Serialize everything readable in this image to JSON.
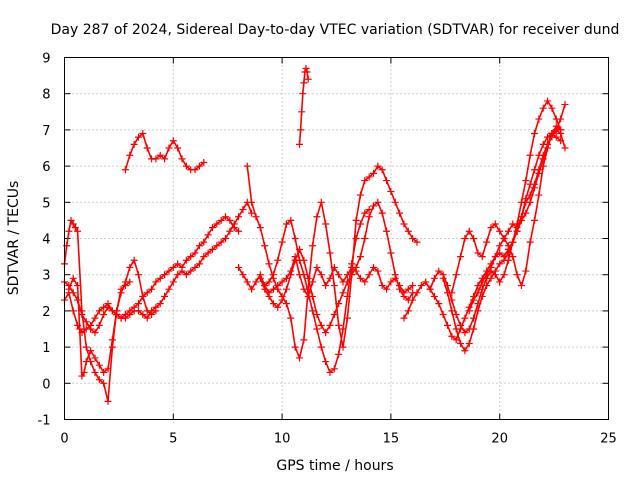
{
  "chart_data": {
    "type": "scatter",
    "title": "Day 287 of 2024, Sidereal Day-to-day VTEC variation (SDTVAR) for receiver dund",
    "xlabel": "GPS time / hours",
    "ylabel": "SDTVAR / TECUs",
    "xlim": [
      0,
      25
    ],
    "ylim": [
      -1,
      9
    ],
    "xticks": [
      0,
      5,
      10,
      15,
      20,
      25
    ],
    "yticks": [
      -1,
      0,
      1,
      2,
      3,
      4,
      5,
      6,
      7,
      8,
      9
    ],
    "grid": true,
    "legend": "none",
    "marker": "plus",
    "color": "#ff0000",
    "series": [
      {
        "name": "trace-1",
        "x": [
          0.0,
          0.2,
          0.4,
          0.6,
          0.8,
          1.0,
          1.2,
          1.4,
          1.6,
          1.8,
          2.0,
          2.2,
          2.4,
          2.6,
          2.8,
          3.0,
          3.2,
          3.4,
          3.6,
          3.8,
          4.0,
          4.2,
          4.4,
          4.6,
          4.8,
          5.0,
          5.2,
          5.4,
          5.6,
          5.8,
          6.0,
          6.2,
          6.4,
          6.6,
          6.8,
          7.0,
          7.2,
          7.4,
          7.6,
          7.8,
          8.0
        ],
        "y": [
          2.3,
          2.5,
          2.0,
          1.6,
          1.4,
          1.5,
          1.6,
          1.8,
          2.0,
          2.1,
          2.2,
          2.0,
          1.9,
          1.8,
          1.9,
          2.0,
          2.1,
          2.2,
          2.4,
          2.5,
          2.6,
          2.8,
          2.9,
          3.0,
          3.1,
          3.2,
          3.3,
          3.2,
          3.4,
          3.5,
          3.6,
          3.8,
          3.9,
          4.1,
          4.3,
          4.4,
          4.5,
          4.6,
          4.5,
          4.3,
          4.2
        ]
      },
      {
        "name": "trace-2",
        "x": [
          0.0,
          0.2,
          0.4,
          0.6,
          0.8,
          1.0,
          1.2,
          1.4,
          1.6,
          1.8,
          2.0,
          2.2,
          2.4,
          2.6,
          2.8,
          3.0,
          3.2,
          3.4,
          3.6,
          3.8,
          4.0,
          4.2,
          4.4,
          4.6,
          4.8,
          5.0,
          5.2,
          5.4,
          5.6,
          5.8,
          6.0,
          6.2,
          6.4,
          6.6,
          6.8,
          7.0,
          7.2,
          7.4,
          7.6,
          7.8,
          8.0,
          8.2,
          8.4,
          8.6
        ],
        "y": [
          2.8,
          2.7,
          2.5,
          2.3,
          1.9,
          1.7,
          1.5,
          1.4,
          1.6,
          1.9,
          2.1,
          2.0,
          1.9,
          1.8,
          1.8,
          1.9,
          2.0,
          2.0,
          1.9,
          1.8,
          2.0,
          2.1,
          2.2,
          2.4,
          2.6,
          2.8,
          3.0,
          3.1,
          3.0,
          3.1,
          3.2,
          3.3,
          3.5,
          3.6,
          3.7,
          3.8,
          3.9,
          4.0,
          4.2,
          4.4,
          4.6,
          4.8,
          5.0,
          4.7
        ]
      },
      {
        "name": "trace-3",
        "x": [
          0.0,
          0.1,
          0.2,
          0.3,
          0.4,
          0.5,
          0.6,
          0.8,
          1.0,
          1.2,
          1.4,
          1.6,
          1.8,
          2.0,
          2.2,
          2.4,
          2.6,
          2.8,
          3.0,
          3.2,
          3.4,
          3.6,
          3.8,
          4.0,
          4.2
        ],
        "y": [
          3.3,
          3.8,
          4.2,
          4.5,
          4.4,
          4.3,
          4.2,
          2.0,
          1.0,
          0.6,
          0.3,
          0.1,
          0.0,
          -0.5,
          1.0,
          2.0,
          2.5,
          2.8,
          3.2,
          3.4,
          3.0,
          2.4,
          2.0,
          1.9,
          2.0
        ]
      },
      {
        "name": "trace-4",
        "x": [
          0.2,
          0.4,
          0.6,
          0.7,
          0.8,
          0.9,
          1.0,
          1.2,
          1.4,
          1.6,
          1.8,
          2.0,
          2.2,
          2.4,
          2.6,
          2.8,
          3.0
        ],
        "y": [
          2.6,
          2.9,
          2.7,
          1.5,
          0.2,
          0.3,
          0.6,
          0.9,
          0.7,
          0.5,
          0.3,
          0.4,
          1.2,
          2.0,
          2.6,
          2.7,
          2.8
        ]
      },
      {
        "name": "trace-5",
        "x": [
          2.8,
          3.0,
          3.2,
          3.4,
          3.6,
          3.8,
          4.0,
          4.2,
          4.4,
          4.6,
          4.8,
          5.0,
          5.2,
          5.4,
          5.6,
          5.8,
          6.0,
          6.2,
          6.4
        ],
        "y": [
          5.9,
          6.3,
          6.6,
          6.8,
          6.9,
          6.5,
          6.2,
          6.2,
          6.3,
          6.2,
          6.5,
          6.7,
          6.5,
          6.2,
          6.0,
          5.9,
          5.9,
          6.0,
          6.1
        ]
      },
      {
        "name": "trace-6",
        "x": [
          8.0,
          8.2,
          8.4,
          8.6,
          8.8,
          9.0,
          9.2,
          9.4,
          9.6,
          9.8,
          10.0,
          10.2,
          10.4,
          10.6,
          10.8,
          11.0,
          11.2,
          11.4,
          11.6,
          11.8,
          12.0,
          12.2,
          12.4,
          12.6,
          12.8,
          13.0,
          13.2,
          13.4,
          13.6,
          13.8,
          14.0,
          14.2,
          14.4,
          14.6,
          14.8,
          15.0,
          15.2,
          15.4,
          15.6,
          15.8,
          16.0
        ],
        "y": [
          3.2,
          3.0,
          2.8,
          2.6,
          2.8,
          3.0,
          2.7,
          2.5,
          2.6,
          2.7,
          2.8,
          2.9,
          3.1,
          3.5,
          3.0,
          2.6,
          2.4,
          2.8,
          3.2,
          3.0,
          2.7,
          2.9,
          3.2,
          3.0,
          2.8,
          3.0,
          3.2,
          3.1,
          2.9,
          2.8,
          3.0,
          3.2,
          3.1,
          2.7,
          2.6,
          2.8,
          2.9,
          2.7,
          2.5,
          2.6,
          2.7
        ]
      },
      {
        "name": "trace-7",
        "x": [
          8.4,
          8.6,
          8.8,
          9.0,
          9.2,
          9.4,
          9.6,
          9.8,
          10.0,
          10.2,
          10.4,
          10.6,
          10.8,
          11.0,
          11.2,
          11.4,
          11.6,
          11.8,
          12.0,
          12.2,
          12.4,
          12.6,
          12.8,
          13.0,
          13.2,
          13.4,
          13.6,
          13.8,
          14.0,
          14.2,
          14.4,
          14.6,
          14.8,
          15.0,
          15.2,
          15.4,
          15.6,
          15.8,
          16.0,
          16.2
        ],
        "y": [
          6.0,
          5.0,
          4.6,
          4.3,
          3.8,
          3.3,
          2.9,
          2.6,
          2.4,
          2.2,
          1.8,
          1.0,
          0.7,
          1.2,
          2.6,
          3.8,
          4.6,
          5.0,
          4.4,
          3.6,
          2.7,
          1.6,
          1.0,
          1.8,
          3.0,
          4.5,
          5.2,
          5.6,
          5.7,
          5.8,
          6.0,
          5.9,
          5.6,
          5.3,
          5.0,
          4.7,
          4.4,
          4.2,
          4.0,
          3.9
        ]
      },
      {
        "name": "trace-8",
        "x": [
          9.0,
          9.2,
          9.4,
          9.6,
          9.8,
          10.0,
          10.2,
          10.4,
          10.6,
          10.8,
          11.0,
          11.2,
          11.4,
          11.6,
          11.8,
          12.0,
          12.2,
          12.4,
          12.6,
          12.8,
          13.0,
          13.2,
          13.4,
          13.6,
          13.8,
          14.0,
          14.2,
          14.4,
          14.6,
          14.8,
          15.0,
          15.2,
          15.4,
          15.6,
          15.8,
          16.0
        ],
        "y": [
          2.9,
          2.6,
          2.4,
          2.2,
          2.1,
          2.3,
          2.6,
          3.0,
          3.4,
          3.7,
          3.4,
          2.9,
          2.4,
          1.9,
          1.6,
          1.4,
          1.6,
          1.9,
          2.2,
          2.5,
          2.8,
          3.0,
          3.2,
          3.5,
          4.0,
          4.6,
          4.9,
          5.0,
          4.7,
          4.2,
          3.6,
          3.0,
          2.6,
          2.4,
          2.3,
          2.5
        ]
      },
      {
        "name": "trace-9",
        "x": [
          9.2,
          9.4,
          9.6,
          9.8,
          10.0,
          10.2,
          10.4,
          10.6,
          10.8,
          11.0,
          11.2,
          11.4,
          11.6,
          11.8,
          12.0,
          12.2,
          12.4,
          12.6,
          12.8,
          13.0,
          13.2,
          13.4,
          13.6,
          13.8,
          14.0
        ],
        "y": [
          2.7,
          2.8,
          3.0,
          3.4,
          3.9,
          4.4,
          4.5,
          4.0,
          3.4,
          3.0,
          2.5,
          2.0,
          1.5,
          1.0,
          0.6,
          0.3,
          0.4,
          0.8,
          1.5,
          2.4,
          3.3,
          4.0,
          4.4,
          4.7,
          4.8
        ]
      },
      {
        "name": "trace-10",
        "x": [
          10.8,
          10.85,
          10.9,
          10.95,
          11.0,
          11.05,
          11.1,
          11.15,
          11.2
        ],
        "y": [
          6.6,
          7.0,
          7.5,
          8.0,
          8.3,
          8.6,
          8.7,
          8.6,
          8.4
        ]
      },
      {
        "name": "trace-11",
        "x": [
          15.6,
          15.8,
          16.0,
          16.2,
          16.4,
          16.6,
          16.8,
          17.0,
          17.2,
          17.4,
          17.6,
          17.8,
          18.0,
          18.2,
          18.4,
          18.6,
          18.8,
          19.0,
          19.2,
          19.4,
          19.6,
          19.8,
          20.0,
          20.2,
          20.4,
          20.6,
          20.8,
          21.0,
          21.2,
          21.4,
          21.6,
          21.8,
          22.0,
          22.2,
          22.4,
          22.6,
          22.8
        ],
        "y": [
          1.8,
          2.0,
          2.3,
          2.5,
          2.7,
          2.8,
          2.6,
          2.4,
          2.2,
          1.9,
          1.6,
          1.3,
          1.2,
          1.5,
          1.8,
          2.1,
          2.4,
          2.7,
          2.9,
          3.1,
          3.3,
          3.5,
          3.6,
          3.5,
          3.7,
          3.9,
          4.2,
          4.6,
          5.1,
          5.5,
          5.9,
          6.3,
          6.6,
          6.8,
          6.9,
          6.8,
          6.7
        ]
      },
      {
        "name": "trace-12",
        "x": [
          16.8,
          17.0,
          17.2,
          17.4,
          17.6,
          17.8,
          18.0,
          18.2,
          18.4,
          18.6,
          18.8,
          19.0,
          19.2,
          19.4,
          19.6,
          19.8,
          20.0,
          20.2,
          20.4,
          20.6,
          20.8,
          21.0,
          21.2,
          21.4,
          21.6,
          21.8,
          22.0,
          22.2,
          22.4,
          22.6,
          22.8
        ],
        "y": [
          2.6,
          2.9,
          3.1,
          3.0,
          2.7,
          2.3,
          1.9,
          1.6,
          1.4,
          1.5,
          1.8,
          2.2,
          2.6,
          2.9,
          3.1,
          3.0,
          2.8,
          3.0,
          3.4,
          3.9,
          4.4,
          5.0,
          5.6,
          6.3,
          6.9,
          7.3,
          7.6,
          7.8,
          7.6,
          7.3,
          7.0
        ]
      },
      {
        "name": "trace-13",
        "x": [
          17.4,
          17.6,
          17.8,
          18.0,
          18.2,
          18.4,
          18.6,
          18.8,
          19.0,
          19.2,
          19.4,
          19.6,
          19.8,
          20.0,
          20.2,
          20.4,
          20.6,
          20.8,
          21.0,
          21.2,
          21.4,
          21.6,
          21.8,
          22.0,
          22.2,
          22.4,
          22.6,
          22.8
        ],
        "y": [
          2.9,
          2.5,
          2.0,
          1.5,
          1.1,
          0.9,
          1.1,
          1.5,
          2.0,
          2.4,
          2.7,
          2.9,
          3.1,
          3.3,
          3.4,
          3.6,
          3.9,
          4.2,
          4.5,
          4.7,
          5.0,
          5.4,
          5.8,
          6.2,
          6.6,
          6.9,
          7.1,
          7.0
        ]
      },
      {
        "name": "trace-14",
        "x": [
          17.8,
          18.0,
          18.2,
          18.4,
          18.6,
          18.8,
          19.0,
          19.2,
          19.4,
          19.6,
          19.8,
          20.0,
          20.2,
          20.4,
          20.6,
          20.8,
          21.0,
          21.2,
          21.4,
          21.6,
          21.8,
          22.0,
          22.2,
          22.4,
          22.6,
          22.8,
          23.0
        ],
        "y": [
          2.5,
          3.0,
          3.5,
          4.0,
          4.2,
          4.0,
          3.6,
          3.5,
          3.9,
          4.3,
          4.4,
          4.2,
          4.0,
          3.8,
          3.5,
          3.0,
          2.7,
          3.1,
          3.9,
          4.5,
          5.2,
          6.0,
          6.5,
          6.9,
          7.0,
          6.9,
          6.5
        ]
      },
      {
        "name": "trace-15",
        "x": [
          18.6,
          18.8,
          19.0,
          19.2,
          19.4,
          19.6,
          19.8,
          20.0,
          20.2,
          20.4,
          20.6,
          20.8,
          21.0,
          21.2,
          21.4,
          21.6,
          21.8,
          22.0,
          22.2,
          22.4,
          22.6,
          22.8,
          23.0
        ],
        "y": [
          2.0,
          2.3,
          2.5,
          2.8,
          3.0,
          3.2,
          3.5,
          3.8,
          4.0,
          4.2,
          4.4,
          4.3,
          4.6,
          5.0,
          5.2,
          5.5,
          5.9,
          6.3,
          6.6,
          6.8,
          7.0,
          7.3,
          7.7
        ]
      }
    ]
  }
}
